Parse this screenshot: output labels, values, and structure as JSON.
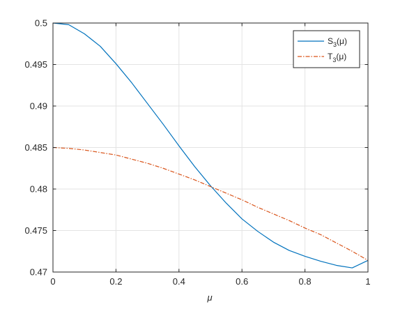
{
  "chart_data": {
    "type": "line",
    "xlabel": "μ",
    "ylabel": "",
    "xlim": [
      0,
      1
    ],
    "ylim": [
      0.47,
      0.5
    ],
    "xticks": [
      0,
      0.2,
      0.4,
      0.6,
      0.8,
      1
    ],
    "xtick_labels": [
      "0",
      "0.2",
      "0.4",
      "0.6",
      "0.8",
      "1"
    ],
    "yticks": [
      0.47,
      0.475,
      0.48,
      0.485,
      0.49,
      0.495,
      0.5
    ],
    "ytick_labels": [
      "0.47",
      "0.475",
      "0.48",
      "0.485",
      "0.49",
      "0.495",
      "0.5"
    ],
    "grid": true,
    "legend_position": "top-right",
    "series": [
      {
        "name": "S₃(μ)",
        "legend_base": "S",
        "legend_sub": "3",
        "legend_arg": "(μ)",
        "color": "#0072BD",
        "style": "solid",
        "x": [
          0,
          0.05,
          0.1,
          0.15,
          0.2,
          0.25,
          0.3,
          0.35,
          0.4,
          0.45,
          0.5,
          0.55,
          0.6,
          0.65,
          0.7,
          0.75,
          0.8,
          0.85,
          0.9,
          0.95,
          1
        ],
        "y": [
          0.5,
          0.4998,
          0.4987,
          0.4972,
          0.4951,
          0.4928,
          0.4903,
          0.4878,
          0.4852,
          0.4827,
          0.4804,
          0.4783,
          0.4764,
          0.4749,
          0.4736,
          0.4726,
          0.4719,
          0.4713,
          0.4708,
          0.4705,
          0.4714
        ]
      },
      {
        "name": "T₃(μ)",
        "legend_base": "T",
        "legend_sub": "3",
        "legend_arg": "(μ)",
        "color": "#D95319",
        "style": "dash-dot",
        "x": [
          0,
          0.05,
          0.1,
          0.15,
          0.2,
          0.25,
          0.3,
          0.35,
          0.4,
          0.45,
          0.5,
          0.55,
          0.6,
          0.65,
          0.7,
          0.75,
          0.8,
          0.85,
          0.9,
          0.95,
          1
        ],
        "y": [
          0.485,
          0.4849,
          0.4847,
          0.4844,
          0.4841,
          0.4836,
          0.4831,
          0.4825,
          0.4818,
          0.4811,
          0.4803,
          0.4795,
          0.4787,
          0.4778,
          0.477,
          0.4762,
          0.4753,
          0.4745,
          0.4735,
          0.4725,
          0.4714
        ]
      }
    ]
  }
}
